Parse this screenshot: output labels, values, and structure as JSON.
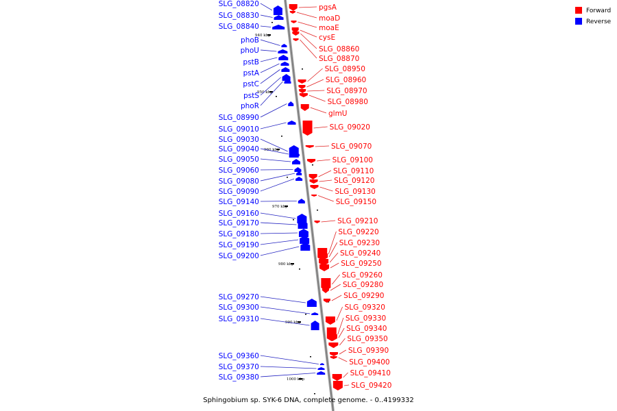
{
  "title": "Sphingobium sp. SYK-6 DNA, complete genome. - 0..4199332",
  "legend": [
    {
      "label": "Forward",
      "color": "#ff0000"
    },
    {
      "label": "Reverse",
      "color": "#0000ff"
    }
  ],
  "colors": {
    "forward": "#ff0000",
    "reverse": "#0000ff",
    "leader_fwd": "#e02020",
    "leader_rev": "#2020c0",
    "axis": "#7f7f7f"
  },
  "kbp_marks": [
    "940 kbp",
    "950 kbp",
    "960 kbp",
    "970 kbp",
    "980 kbp",
    "990 kbp",
    "1000 kbp"
  ],
  "reverse_genes": [
    "SLG_08820",
    "SLG_08830",
    "SLG_08840",
    "phoB",
    "phoU",
    "pstB",
    "pstA",
    "pstC",
    "pstS",
    "phoR",
    "SLG_08990",
    "SLG_09010",
    "SLG_09030",
    "SLG_09040",
    "SLG_09050",
    "SLG_09060",
    "SLG_09080",
    "SLG_09090",
    "SLG_09140",
    "SLG_09160",
    "SLG_09170",
    "SLG_09180",
    "SLG_09190",
    "SLG_09200",
    "SLG_09270",
    "SLG_09300",
    "SLG_09310",
    "SLG_09360",
    "SLG_09370",
    "SLG_09380"
  ],
  "forward_genes": [
    "pgsA",
    "moaD",
    "moaE",
    "cysE",
    "SLG_08860",
    "SLG_08870",
    "SLG_08950",
    "SLG_08960",
    "SLG_08970",
    "SLG_08980",
    "glmU",
    "SLG_09020",
    "SLG_09070",
    "SLG_09100",
    "SLG_09110",
    "SLG_09120",
    "SLG_09130",
    "SLG_09150",
    "SLG_09210",
    "SLG_09220",
    "SLG_09230",
    "SLG_09240",
    "SLG_09250",
    "SLG_09260",
    "SLG_09280",
    "SLG_09290",
    "SLG_09320",
    "SLG_09330",
    "SLG_09340",
    "SLG_09350",
    "SLG_09390",
    "SLG_09400",
    "SLG_09410",
    "SLG_09420"
  ]
}
